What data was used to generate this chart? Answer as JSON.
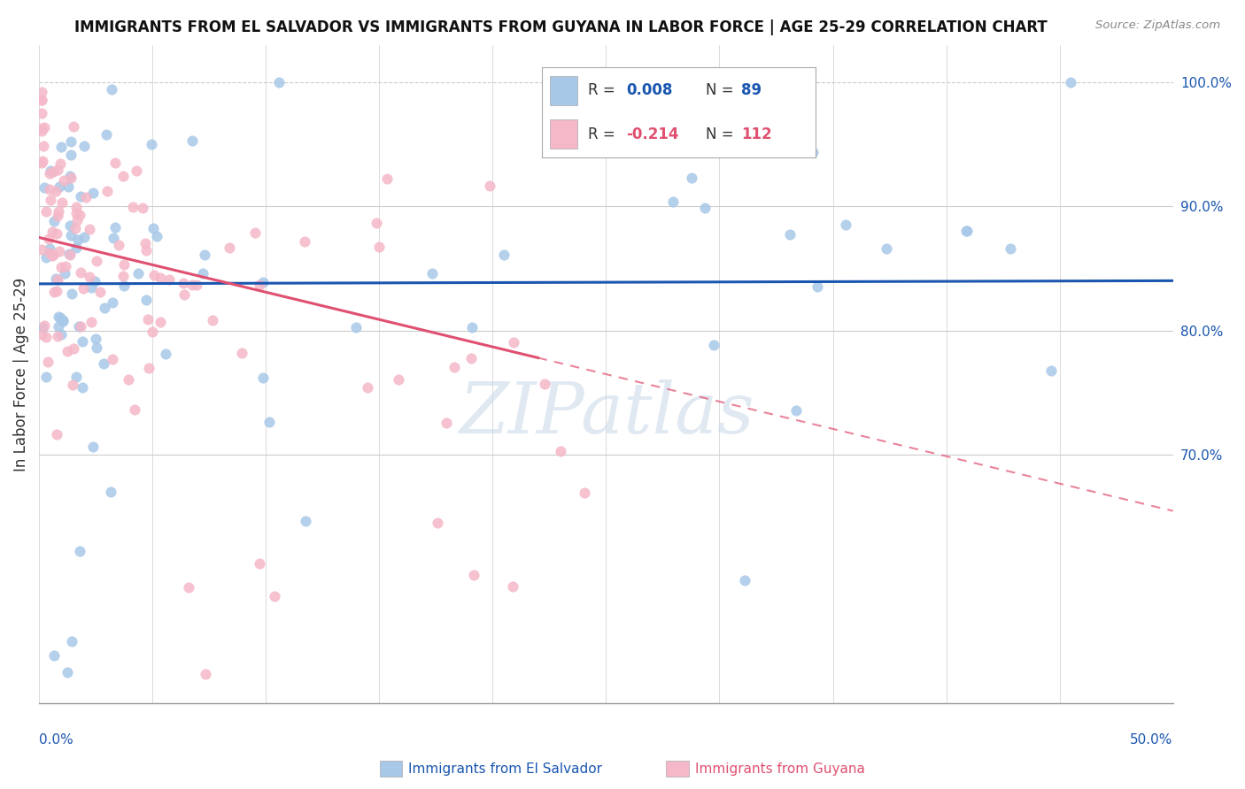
{
  "title": "IMMIGRANTS FROM EL SALVADOR VS IMMIGRANTS FROM GUYANA IN LABOR FORCE | AGE 25-29 CORRELATION CHART",
  "source": "Source: ZipAtlas.com",
  "ylabel": "In Labor Force | Age 25-29",
  "x_min": 0.0,
  "x_max": 0.5,
  "y_min": 0.5,
  "y_max": 1.03,
  "el_salvador_R": 0.008,
  "el_salvador_N": 89,
  "guyana_R": -0.214,
  "guyana_N": 112,
  "color_el_salvador": "#a8c8e8",
  "color_guyana": "#f5b8c8",
  "line_color_el_salvador": "#1a56b0",
  "line_color_guyana": "#e05070",
  "background_color": "#ffffff",
  "grid_color": "#cccccc",
  "watermark": "ZIPatlas"
}
